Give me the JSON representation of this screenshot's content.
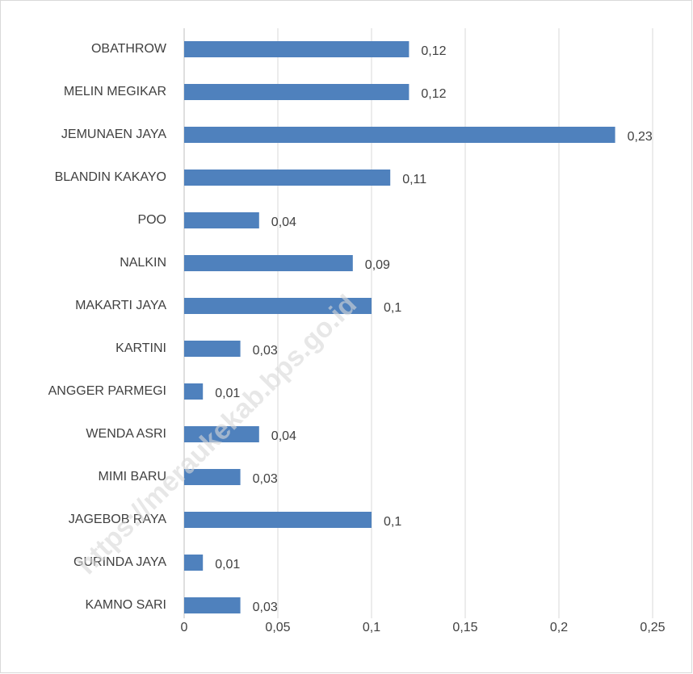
{
  "chart_data": {
    "type": "bar",
    "orientation": "horizontal",
    "categories": [
      "OBATHROW",
      "MELIN MEGIKAR",
      "JEMUNAEN JAYA",
      "BLANDIN KAKAYO",
      "POO",
      "NALKIN",
      "MAKARTI JAYA",
      "KARTINI",
      "ANGGER PARMEGI",
      "WENDA ASRI",
      "MIMI BARU",
      "JAGEBOB RAYA",
      "GURINDA JAYA",
      "KAMNO SARI"
    ],
    "values": [
      0.12,
      0.12,
      0.23,
      0.11,
      0.04,
      0.09,
      0.1,
      0.03,
      0.01,
      0.04,
      0.03,
      0.1,
      0.01,
      0.03
    ],
    "value_labels": [
      "0,12",
      "0,12",
      "0,23",
      "0,11",
      "0,04",
      "0,09",
      "0,1",
      "0,03",
      "0,01",
      "0,04",
      "0,03",
      "0,1",
      "0,01",
      "0,03"
    ],
    "color": "#4f81bd",
    "xlim": [
      0,
      0.25
    ],
    "xticks": [
      0,
      {
        "value": 0.05,
        "label": "0,05"
      },
      {
        "value": 0.1,
        "label": "0,1"
      },
      {
        "value": 0.15,
        "label": "0,15"
      },
      {
        "value": 0.2,
        "label": "0,2"
      },
      {
        "value": 0.25,
        "label": "0,25"
      }
    ],
    "grid": true,
    "watermark": "https://meraukekab.bps.go.id"
  }
}
